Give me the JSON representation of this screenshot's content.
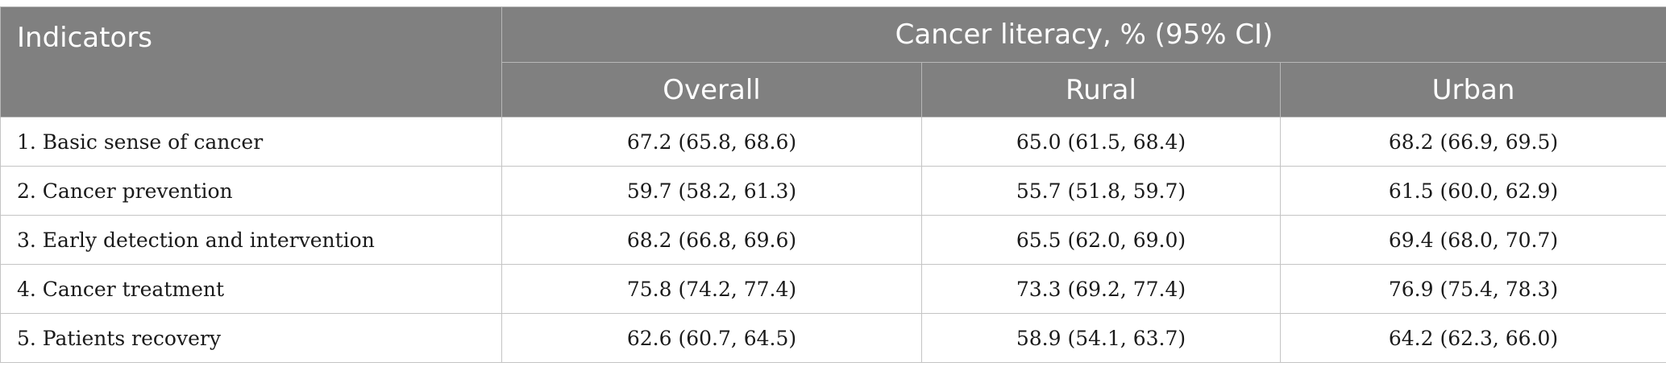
{
  "header": {
    "indicators": "Indicators",
    "group": "Cancer literacy, % (95% CI)",
    "columns": [
      "Overall",
      "Rural",
      "Urban"
    ]
  },
  "rows": [
    {
      "indicator": "1. Basic sense of cancer",
      "overall": "67.2 (65.8, 68.6)",
      "rural": "65.0 (61.5, 68.4)",
      "urban": "68.2 (66.9, 69.5)"
    },
    {
      "indicator": "2. Cancer prevention",
      "overall": "59.7 (58.2, 61.3)",
      "rural": "55.7 (51.8, 59.7)",
      "urban": "61.5 (60.0, 62.9)"
    },
    {
      "indicator": "3. Early detection and intervention",
      "overall": "68.2 (66.8, 69.6)",
      "rural": "65.5 (62.0, 69.0)",
      "urban": "69.4 (68.0, 70.7)"
    },
    {
      "indicator": "4. Cancer treatment",
      "overall": "75.8 (74.2, 77.4)",
      "rural": "73.3 (69.2, 77.4)",
      "urban": "76.9 (75.4, 78.3)"
    },
    {
      "indicator": "5. Patients recovery",
      "overall": "62.6 (60.7, 64.5)",
      "rural": "58.9 (54.1, 63.7)",
      "urban": "64.2 (62.3, 66.0)"
    }
  ]
}
